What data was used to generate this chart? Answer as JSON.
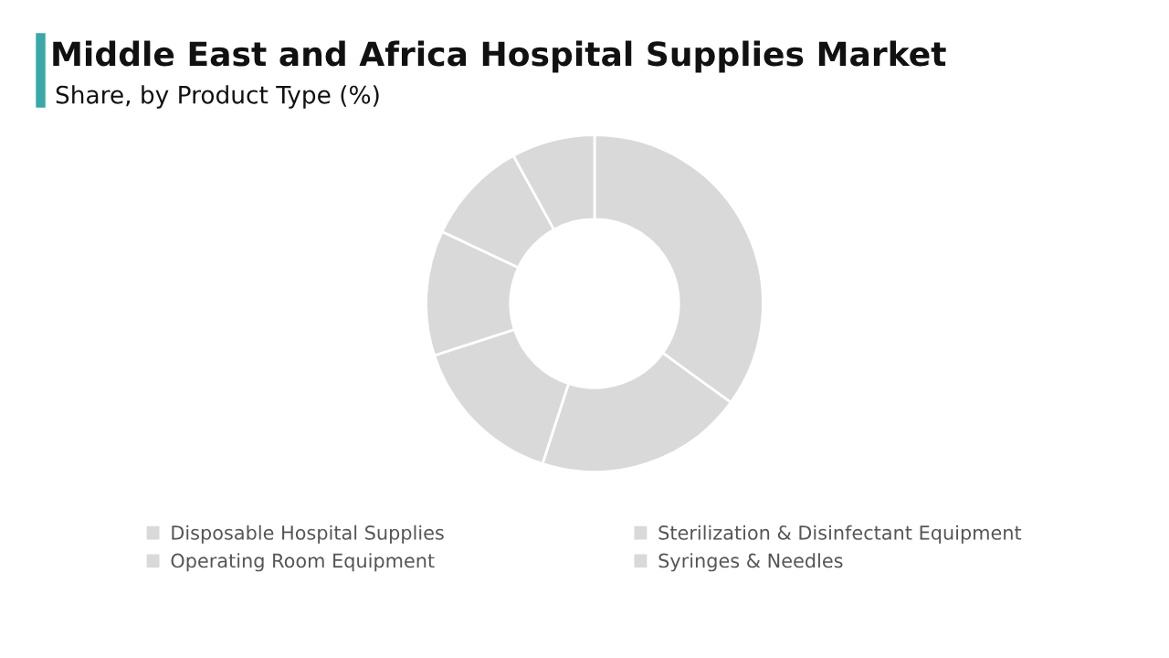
{
  "chart_data": {
    "type": "donut",
    "title": "Middle East and Africa Hospital Supplies Market",
    "subtitle": "Share, by Product Type (%)",
    "categories": [
      "Disposable Hospital Supplies",
      "Operating Room Equipment",
      "Sterilization & Disinfectant Equipment",
      "Syringes & Needles",
      null,
      null
    ],
    "values": [
      35,
      20,
      15,
      12,
      10,
      8
    ],
    "colors": [
      "#d9d9d9",
      "#d9d9d9",
      "#d9d9d9",
      "#d9d9d9",
      "#d9d9d9",
      "#d9d9d9"
    ],
    "legend": "bottom"
  }
}
